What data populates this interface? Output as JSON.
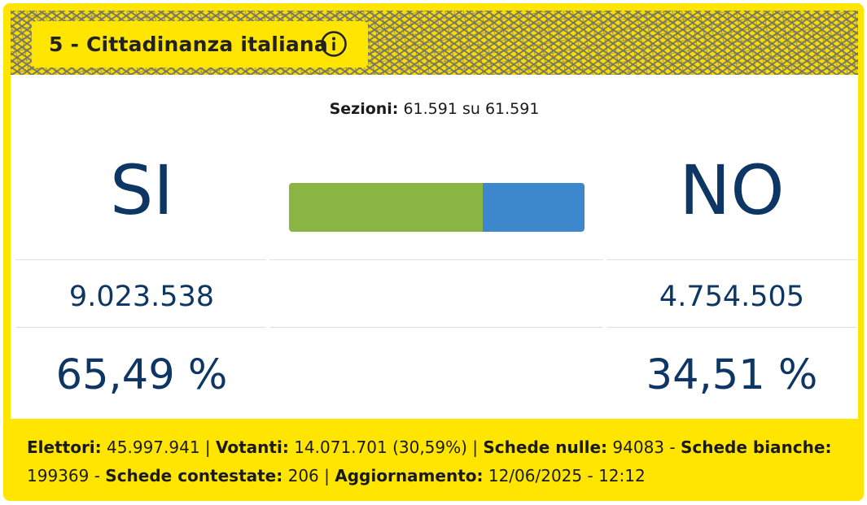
{
  "header": {
    "title": "5 - Cittadinanza italiana",
    "info_icon": "info-circle-icon"
  },
  "sezioni": {
    "label": "Sezioni:",
    "value": "61.591 su 61.591"
  },
  "results": {
    "si": {
      "label": "SI",
      "votes": "9.023.538",
      "percent": "65,49 %",
      "share": 0.6549,
      "color": "#8ab543"
    },
    "no": {
      "label": "NO",
      "votes": "4.754.505",
      "percent": "34,51 %",
      "share": 0.3451,
      "color": "#3d88cd"
    }
  },
  "footer": {
    "elettori_label": "Elettori:",
    "elettori_value": "45.997.941",
    "votanti_label": "Votanti:",
    "votanti_value": "14.071.701 (30,59%)",
    "nulle_label": "Schede nulle:",
    "nulle_value": "94083",
    "bianche_label": "Schede bianche:",
    "bianche_value": "199369",
    "contestate_label": "Schede contestate:",
    "contestate_value": "206",
    "aggiornamento_label": "Aggiornamento:",
    "aggiornamento_value": "12/06/2025 - 12:12"
  },
  "colors": {
    "card_yellow": "#ffe500",
    "text_navy": "#0d3665"
  }
}
